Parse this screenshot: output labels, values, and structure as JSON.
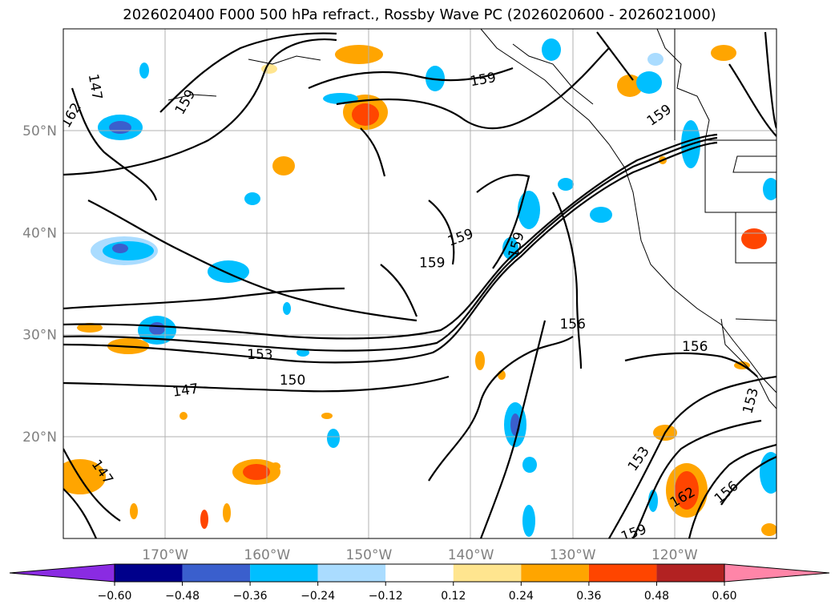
{
  "title": "2026020400 F000 500 hPa refract., Rossby Wave PC (2026020600 - 2026021000)",
  "map": {
    "lon_range": [
      -180,
      -110
    ],
    "lat_range": [
      10,
      60
    ],
    "lat_ticks": [
      {
        "value": 20,
        "label": "20°N"
      },
      {
        "value": 30,
        "label": "30°N"
      },
      {
        "value": 40,
        "label": "40°N"
      },
      {
        "value": 50,
        "label": "50°N"
      }
    ],
    "lon_ticks": [
      {
        "value": -170,
        "label": "170°W"
      },
      {
        "value": -160,
        "label": "160°W"
      },
      {
        "value": -150,
        "label": "150°W"
      },
      {
        "value": -140,
        "label": "140°W"
      },
      {
        "value": -130,
        "label": "130°W"
      },
      {
        "value": -120,
        "label": "120°W"
      }
    ],
    "contour_labels": [
      {
        "text": "162",
        "lon": -179.2,
        "lat": 51.5,
        "rotate": -60
      },
      {
        "text": "147",
        "lon": -176.9,
        "lat": 54.3,
        "rotate": 80
      },
      {
        "text": "159",
        "lon": -168.0,
        "lat": 52.8,
        "rotate": -60
      },
      {
        "text": "159",
        "lon": -138.8,
        "lat": 55.0,
        "rotate": -10
      },
      {
        "text": "159",
        "lon": -121.5,
        "lat": 51.5,
        "rotate": -35
      },
      {
        "text": "159",
        "lon": -141.0,
        "lat": 39.5,
        "rotate": -20
      },
      {
        "text": "159",
        "lon": -143.8,
        "lat": 37.0,
        "rotate": 0
      },
      {
        "text": "159",
        "lon": -135.5,
        "lat": 38.8,
        "rotate": -75
      },
      {
        "text": "156",
        "lon": -130.0,
        "lat": 31.0,
        "rotate": 0
      },
      {
        "text": "156",
        "lon": -118.0,
        "lat": 28.8,
        "rotate": 0
      },
      {
        "text": "153",
        "lon": -160.7,
        "lat": 28.0,
        "rotate": 0
      },
      {
        "text": "153",
        "lon": -112.5,
        "lat": 23.5,
        "rotate": -75
      },
      {
        "text": "150",
        "lon": -157.5,
        "lat": 25.5,
        "rotate": 0
      },
      {
        "text": "147",
        "lon": -168.0,
        "lat": 24.5,
        "rotate": -8
      },
      {
        "text": "147",
        "lon": -176.2,
        "lat": 16.5,
        "rotate": 55
      },
      {
        "text": "153",
        "lon": -123.5,
        "lat": 17.8,
        "rotate": -55
      },
      {
        "text": "162",
        "lon": -119.2,
        "lat": 14.0,
        "rotate": -30
      },
      {
        "text": "156",
        "lon": -114.9,
        "lat": 14.5,
        "rotate": -40
      },
      {
        "text": "159",
        "lon": -124.0,
        "lat": 10.5,
        "rotate": -20
      }
    ],
    "colors": {
      "land_boundary": "#000000",
      "grid": "#b0b0b0",
      "contour": "#000000"
    }
  },
  "colorbar": {
    "levels": [
      "−0.60",
      "−0.48",
      "−0.36",
      "−0.24",
      "−0.12",
      "0.12",
      "0.24",
      "0.36",
      "0.48",
      "0.60"
    ],
    "colors": [
      "#8a2be2",
      "#00008b",
      "#3a5fcd",
      "#00bfff",
      "#aadcff",
      "#ffffff",
      "#ffe58f",
      "#ffa500",
      "#ff4500",
      "#b22222",
      "#ff85a8"
    ]
  }
}
